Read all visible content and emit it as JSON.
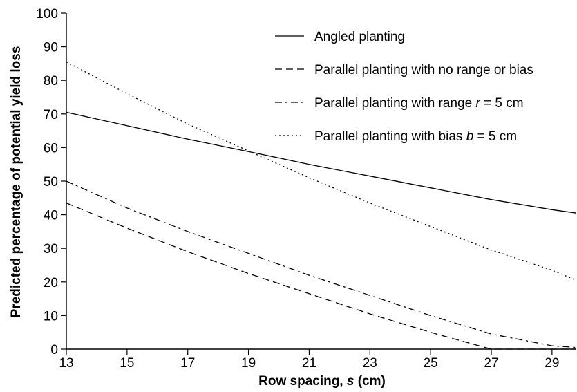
{
  "chart_data": {
    "type": "line",
    "title": "",
    "xlabel": "Row spacing, s (cm)",
    "xlabel_parts": [
      "Row spacing, ",
      "s",
      " (cm)"
    ],
    "ylabel": "Predicted percentage of potential yield loss",
    "xlim": [
      13,
      29.8
    ],
    "ylim": [
      0,
      100
    ],
    "xticks": [
      13,
      15,
      17,
      19,
      21,
      23,
      25,
      27,
      29
    ],
    "yticks": [
      0,
      10,
      20,
      30,
      40,
      50,
      60,
      70,
      80,
      90,
      100
    ],
    "grid": false,
    "legend_position": "top-right",
    "series": [
      {
        "name": "Angled planting",
        "name_parts": [
          "Angled planting"
        ],
        "style": "solid",
        "x": [
          13,
          15,
          17,
          19,
          21,
          23,
          25,
          27,
          29,
          29.8
        ],
        "y": [
          70.5,
          66.5,
          62.5,
          58.8,
          55,
          51.5,
          48,
          44.5,
          41.5,
          40.5
        ]
      },
      {
        "name": "Parallel planting with no range or bias",
        "name_parts": [
          "Parallel planting with no range or bias"
        ],
        "style": "dashed",
        "x": [
          13,
          15,
          17,
          19,
          21,
          23,
          25,
          27,
          29,
          29.8
        ],
        "y": [
          43.5,
          36,
          29,
          22.5,
          16.5,
          10.5,
          5,
          0,
          0,
          0
        ]
      },
      {
        "name": "Parallel planting with range r = 5 cm",
        "name_parts": [
          "Parallel planting with range ",
          "r",
          " = 5 cm"
        ],
        "style": "dashdot",
        "x": [
          13,
          15,
          17,
          19,
          21,
          23,
          25,
          27,
          29,
          29.8
        ],
        "y": [
          50,
          42,
          35,
          28.5,
          22,
          16,
          10,
          4.5,
          1,
          0.5
        ]
      },
      {
        "name": "Parallel planting with bias b = 5 cm",
        "name_parts": [
          "Parallel planting with bias ",
          "b",
          " = 5 cm"
        ],
        "style": "dotted",
        "x": [
          13,
          15,
          17,
          19,
          21,
          23,
          25,
          27,
          29,
          29.8
        ],
        "y": [
          85.5,
          76,
          67,
          59,
          51,
          43.5,
          36.5,
          29.5,
          23.5,
          20.5
        ]
      }
    ]
  }
}
